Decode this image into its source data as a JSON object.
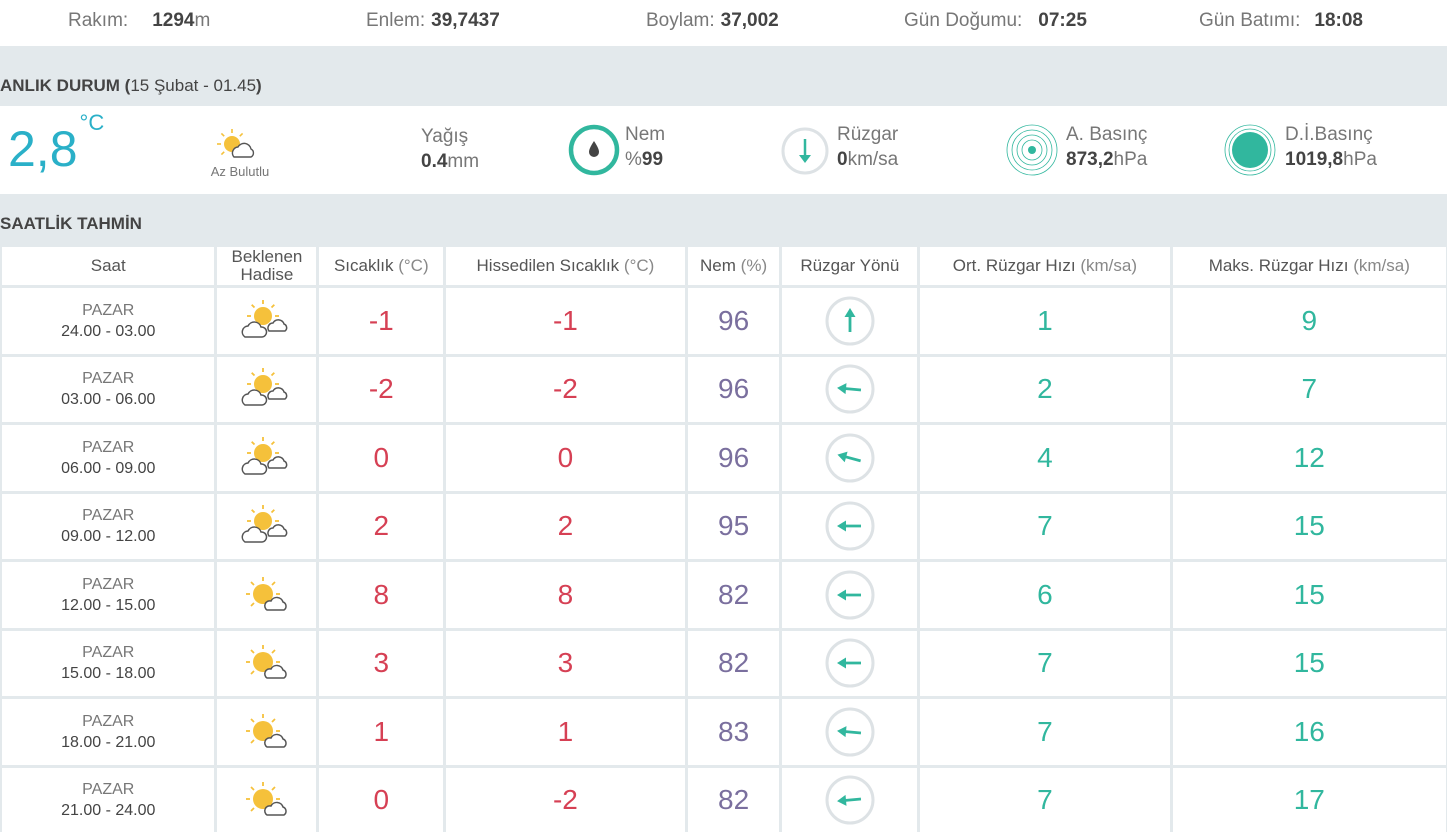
{
  "stats": {
    "altitude_label": "Rakım:",
    "altitude_value": "1294",
    "altitude_unit": "m",
    "lat_label": "Enlem:",
    "lat_value": "39,7437",
    "lon_label": "Boylam:",
    "lon_value": "37,002",
    "sunrise_label": "Gün Doğumu:",
    "sunrise_value": "07:25",
    "sunset_label": "Gün Batımı:",
    "sunset_value": "18:08"
  },
  "current": {
    "title": "ANLIK DURUM",
    "date": "15 Şubat - 01.45",
    "temp": "2,8",
    "temp_unit": "°C",
    "condition": "Az Bulutlu",
    "precip_label": "Yağış",
    "precip_value": "0.4",
    "precip_unit": "mm",
    "humidity_label": "Nem",
    "humidity_prefix": "%",
    "humidity_value": "99",
    "wind_label": "Rüzgar",
    "wind_value": "0",
    "wind_unit": "km/sa",
    "pressure_label": "A. Basınç",
    "pressure_value": "873,2",
    "pressure_unit": "hPa",
    "sea_pressure_label": "D.İ.Basınç",
    "sea_pressure_value": "1019,8",
    "sea_pressure_unit": "hPa",
    "colors": {
      "accent": "#2ab0c8",
      "teal": "#31b79e"
    }
  },
  "hourly": {
    "title": "SAATLİK TAHMİN",
    "headers": {
      "time": "Saat",
      "event_1": "Beklenen",
      "event_2": "Hadise",
      "temp": "Sıcaklık",
      "temp_unit": "(°C)",
      "feels": "Hissedilen Sıcaklık",
      "feels_unit": "(°C)",
      "hum": "Nem",
      "hum_unit": "(%)",
      "dir": "Rüzgar Yönü",
      "avg": "Ort. Rüzgar Hızı",
      "avg_unit": "(km/sa)",
      "max": "Maks. Rüzgar Hızı",
      "max_unit": "(km/sa)"
    },
    "rows": [
      {
        "day": "PAZAR",
        "range": "24.00 - 03.00",
        "icon": "partly-cloudy-icon",
        "temp": "-1",
        "feels": "-1",
        "hum": "96",
        "dir_deg": 0,
        "avg": "1",
        "max": "9"
      },
      {
        "day": "PAZAR",
        "range": "03.00 - 06.00",
        "icon": "partly-cloudy-icon",
        "temp": "-2",
        "feels": "-2",
        "hum": "96",
        "dir_deg": 275,
        "avg": "2",
        "max": "7"
      },
      {
        "day": "PAZAR",
        "range": "06.00 - 09.00",
        "icon": "partly-cloudy-icon",
        "temp": "0",
        "feels": "0",
        "hum": "96",
        "dir_deg": 285,
        "avg": "4",
        "max": "12"
      },
      {
        "day": "PAZAR",
        "range": "09.00 - 12.00",
        "icon": "partly-cloudy-icon",
        "temp": "2",
        "feels": "2",
        "hum": "95",
        "dir_deg": 270,
        "avg": "7",
        "max": "15"
      },
      {
        "day": "PAZAR",
        "range": "12.00 - 15.00",
        "icon": "mostly-sunny-icon",
        "temp": "8",
        "feels": "8",
        "hum": "82",
        "dir_deg": 270,
        "avg": "6",
        "max": "15"
      },
      {
        "day": "PAZAR",
        "range": "15.00 - 18.00",
        "icon": "mostly-sunny-icon",
        "temp": "3",
        "feels": "3",
        "hum": "82",
        "dir_deg": 270,
        "avg": "7",
        "max": "15"
      },
      {
        "day": "PAZAR",
        "range": "18.00 - 21.00",
        "icon": "mostly-sunny-icon",
        "temp": "1",
        "feels": "1",
        "hum": "83",
        "dir_deg": 275,
        "avg": "7",
        "max": "16"
      },
      {
        "day": "PAZAR",
        "range": "21.00 - 24.00",
        "icon": "mostly-sunny-icon",
        "temp": "0",
        "feels": "-2",
        "hum": "82",
        "dir_deg": 265,
        "avg": "7",
        "max": "17"
      }
    ]
  }
}
